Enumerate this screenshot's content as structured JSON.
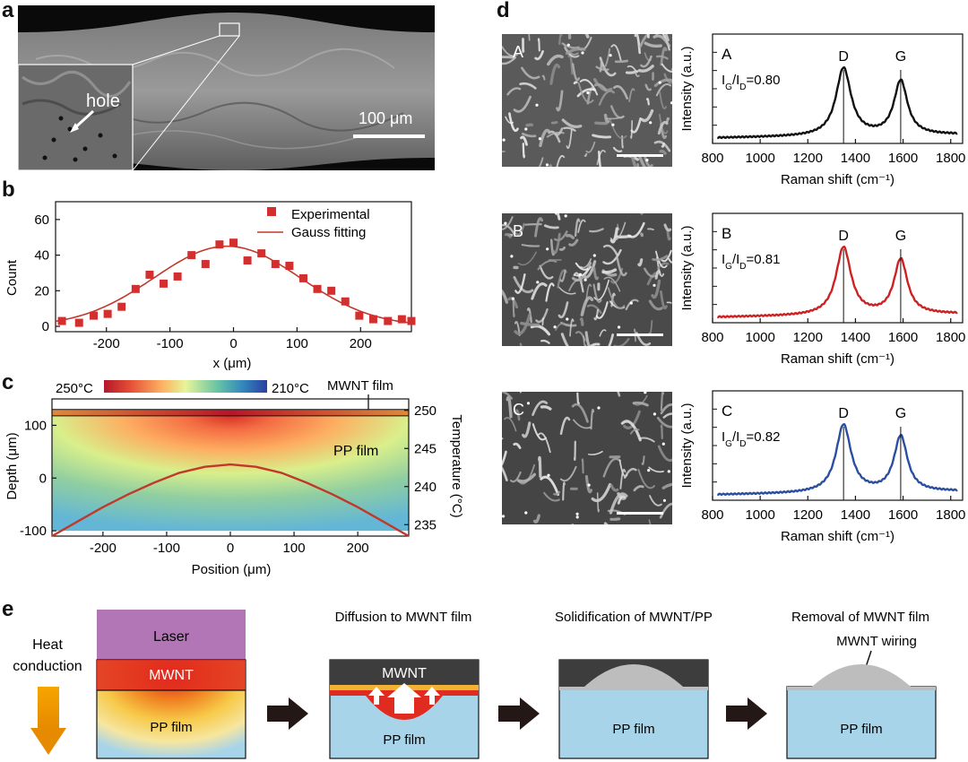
{
  "panel_labels": {
    "a": "a",
    "b": "b",
    "c": "c",
    "d": "d",
    "e": "e"
  },
  "panel_a": {
    "hole_label": "hole",
    "scale_label": "100 μm"
  },
  "panel_b": {
    "chart_data": {
      "type": "scatter",
      "title": "",
      "xlabel": "x (μm)",
      "ylabel": "Count",
      "xlim": [
        -280,
        280
      ],
      "ylim": [
        -3,
        70
      ],
      "x_ticks": [
        "-200",
        "-100",
        "0",
        "100",
        "200"
      ],
      "y_ticks": [
        "0",
        "20",
        "40",
        "60"
      ],
      "legend": [
        "Experimental",
        "Gauss fitting"
      ],
      "series": [
        {
          "name": "Experimental",
          "x": [
            -270,
            -243,
            -220,
            -198,
            -176,
            -154,
            -132,
            -110,
            -88,
            -66,
            -44,
            -22,
            0,
            22,
            44,
            66,
            88,
            110,
            132,
            154,
            176,
            198,
            220,
            243,
            265,
            280
          ],
          "y": [
            3,
            2,
            6,
            7,
            11,
            21,
            29,
            24,
            28,
            40,
            35,
            46,
            47,
            37,
            41,
            35,
            34,
            27,
            21,
            20,
            14,
            6,
            4,
            3,
            4,
            3
          ]
        },
        {
          "name": "Gauss fitting",
          "amplitude": 45,
          "center": -10,
          "sigma": 115
        }
      ]
    }
  },
  "panel_c": {
    "colorbar_hot": "250°C",
    "colorbar_cold": "210°C",
    "mwnt_film_label": "MWNT film",
    "pp_film_label": "PP film",
    "xlabel": "Position (μm)",
    "ylabel_left": "Depth (μm)",
    "ylabel_right": "Temperature (°C)",
    "chart_data": {
      "type": "line",
      "xlim": [
        -280,
        280
      ],
      "depth_lim": [
        -110,
        150
      ],
      "temp_lim": [
        233.5,
        251.5
      ],
      "x_ticks": [
        "-200",
        "-100",
        "0",
        "100",
        "200"
      ],
      "depth_ticks": [
        "-100",
        "0",
        "100"
      ],
      "temp_ticks": [
        "235",
        "240",
        "245",
        "250"
      ],
      "series": [
        {
          "name": "Temperature",
          "x": [
            -280,
            -240,
            -200,
            -160,
            -120,
            -80,
            -40,
            0,
            40,
            80,
            120,
            160,
            200,
            240,
            280
          ],
          "y": [
            233.5,
            235.4,
            237.3,
            239.0,
            240.5,
            241.8,
            242.6,
            242.9,
            242.6,
            241.8,
            240.5,
            239.0,
            237.3,
            235.4,
            233.5
          ]
        }
      ]
    }
  },
  "panel_d": {
    "chart_data": [
      {
        "type": "line",
        "label": "A",
        "ratio_label": "0.80",
        "color": "#111111",
        "xlabel": "Raman shift (cm⁻¹)",
        "ylabel": "Intensity (a.u.)",
        "xlim": [
          800,
          1850
        ],
        "x_ticks": [
          "800",
          "1000",
          "1200",
          "1400",
          "1600",
          "1800"
        ],
        "peaks": [
          "D",
          "G"
        ],
        "D_peak": 1350,
        "G_peak": 1590,
        "D_height": 1.0,
        "G_height": 0.8
      },
      {
        "type": "line",
        "label": "B",
        "ratio_label": "0.81",
        "color": "#cc2222",
        "xlabel": "Raman shift (cm⁻¹)",
        "ylabel": "Intensity (a.u.)",
        "xlim": [
          800,
          1850
        ],
        "x_ticks": [
          "800",
          "1000",
          "1200",
          "1400",
          "1600",
          "1800"
        ],
        "peaks": [
          "D",
          "G"
        ],
        "D_peak": 1350,
        "G_peak": 1590,
        "D_height": 1.0,
        "G_height": 0.81
      },
      {
        "type": "line",
        "label": "C",
        "ratio_label": "0.82",
        "color": "#2a4fa0",
        "xlabel": "Raman shift (cm⁻¹)",
        "ylabel": "Intensity (a.u.)",
        "xlim": [
          800,
          1850
        ],
        "x_ticks": [
          "800",
          "1000",
          "1200",
          "1400",
          "1600",
          "1800"
        ],
        "peaks": [
          "D",
          "G"
        ],
        "D_peak": 1350,
        "G_peak": 1590,
        "D_height": 1.0,
        "G_height": 0.82
      }
    ]
  },
  "panel_e": {
    "heat_label_1": "Heat",
    "heat_label_2": "conduction",
    "laser_label": "Laser",
    "mwnt_label": "MWNT",
    "pp_label": "PP film",
    "step2_title": "Diffusion to MWNT film",
    "step3_title": "Solidification of MWNT/PP",
    "step4_title": "Removal of MWNT film",
    "wiring_label": "MWNT wiring"
  }
}
